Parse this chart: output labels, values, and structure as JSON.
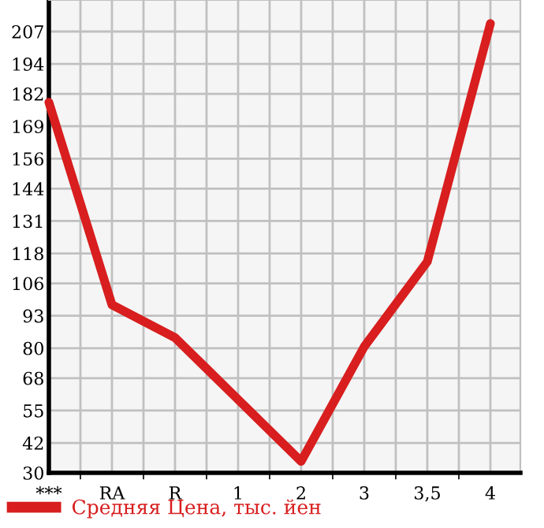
{
  "chart_data": {
    "type": "line",
    "categories": [
      "***",
      "RA",
      "R",
      "1",
      "2",
      "3",
      "3,5",
      "4"
    ],
    "series": [
      {
        "name": "Средняя Цена, тыс. йен",
        "color": "#d81e1e",
        "values": [
          178.6,
          97.4,
          84.2,
          59.4,
          34.6,
          80.6,
          114.7,
          210.2
        ]
      }
    ],
    "ylim": [
      30,
      219.64
    ],
    "yticks": [
      30,
      42,
      55,
      68,
      80,
      93,
      106,
      118,
      131,
      144,
      156,
      169,
      182,
      194,
      207
    ],
    "grid": true,
    "legend": "bottom left",
    "marker": "none",
    "line_style": "solid"
  }
}
